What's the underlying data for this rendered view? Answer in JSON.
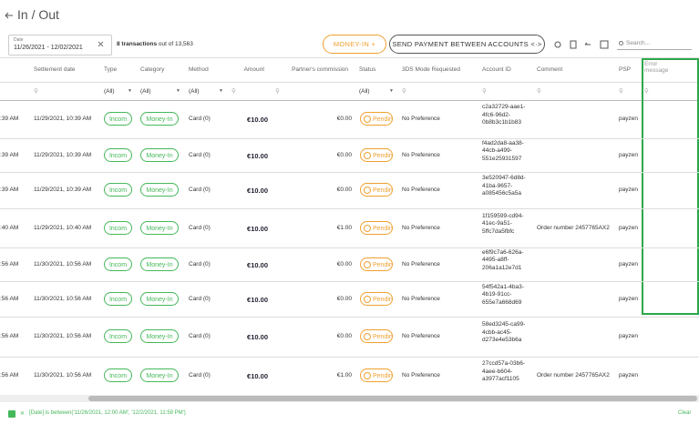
{
  "header": {
    "title": "In / Out",
    "date_label": "Date",
    "date_range": "11/26/2021 - 12/02/2021",
    "count": "8 transactions",
    "count_total": "out of 13,563",
    "money_in": "MONEY-IN",
    "send_payment": "SEND PAYMENT BETWEEN ACCOUNTS",
    "search_placeholder": "Search..."
  },
  "table": {
    "columns": [
      null,
      "Settlement date",
      "Type",
      "Category",
      "Method",
      "Amount",
      "Partner's commission",
      "Status",
      "3DS Mode Requested",
      "Account ID",
      "Comment",
      "PSP",
      "Error message"
    ],
    "filters": [
      null,
      null,
      "(All)",
      "(All)",
      "(All)",
      null,
      null,
      "(All)",
      null,
      null,
      null,
      null,
      null
    ],
    "rows": [
      [
        ":39 AM",
        "11/29/2021, 10:39 AM",
        "Incom",
        "Money-In",
        "Card (0)",
        "€10.00",
        "€0.00",
        "Pendin",
        "No Preference",
        "c2a32729-aae1-4fc6-96d2-0b8b3c1b1b83",
        null,
        "payzen",
        null
      ],
      [
        ":39 AM",
        "11/29/2021, 10:39 AM",
        "Incom",
        "Money-In",
        "Card (0)",
        "€10.00",
        "€0.00",
        "Pendin",
        "No Preference",
        "f4ad2da8-aa38-44cb-a499-551e25931597",
        null,
        "payzen",
        null
      ],
      [
        ":39 AM",
        "11/29/2021, 10:39 AM",
        "Incom",
        "Money-In",
        "Card (0)",
        "€10.00",
        "€0.00",
        "Pendin",
        "No Preference",
        "3e520947-6d8d-41ba-9657-a085456c5a5a",
        null,
        "payzen",
        null
      ],
      [
        ":40 AM",
        "11/29/2021, 10:40 AM",
        "Incom",
        "Money-In",
        "Card (0)",
        "€10.00",
        "€1.00",
        "Pendin",
        "No Preference",
        "1f159599-cd94-41ec-9a51-5ffc7da5fbfc",
        "Order number 2457765AX2",
        "payzen",
        null
      ],
      [
        ":56 AM",
        "11/30/2021, 10:56 AM",
        "Incom",
        "Money-In",
        "Card (0)",
        "€10.00",
        "€0.00",
        "Pendin",
        "No Preference",
        "e6f9c7a6-626a-4495-a8ff-206a1a12e7d1",
        null,
        "payzen",
        null
      ],
      [
        ":56 AM",
        "11/30/2021, 10:56 AM",
        "Incom",
        "Money-In",
        "Card (0)",
        "€10.00",
        "€0.00",
        "Pendin",
        "No Preference",
        "54f542a1-4ba3-4b19-91cc-655e7a668d69",
        null,
        "payzen",
        null
      ],
      [
        ":56 AM",
        "11/30/2021, 10:56 AM",
        "Incom",
        "Money-In",
        "Card (0)",
        "€10.00",
        "€0.00",
        "Pendin",
        "No Preference",
        "58ed3245-ca99-4cbb-ac45-d273e4e53b6a",
        null,
        "payzen",
        null
      ],
      [
        ":56 AM",
        "11/30/2021, 10:56 AM",
        "Incom",
        "Money-In",
        "Card (0)",
        "€10.00",
        "€1.00",
        "Pendin",
        "No Preference",
        "27ccd57a-03b6-4aee-b604-a3977acf1105",
        "Order number 2457765AX2",
        "payzen",
        null
      ]
    ]
  },
  "footer": {
    "filter": "[Date] is between('11/26/2021, 12:00 AM', '12/2/2021, 11:59 PM')",
    "clear": "Clear"
  }
}
